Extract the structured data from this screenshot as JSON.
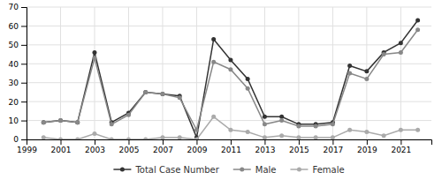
{
  "chart_data": {
    "type": "line",
    "x": [
      2000,
      2001,
      2002,
      2003,
      2004,
      2005,
      2006,
      2007,
      2008,
      2009,
      2010,
      2011,
      2012,
      2013,
      2014,
      2015,
      2016,
      2017,
      2018,
      2019,
      2020,
      2021,
      2022
    ],
    "series": [
      {
        "name": "Total Case Number",
        "color": "#333333",
        "marker": "circle",
        "values": [
          9,
          10,
          9,
          46,
          9,
          14,
          25,
          24,
          23,
          1,
          53,
          42,
          32,
          12,
          12,
          8,
          8,
          9,
          39,
          36,
          46,
          51,
          63
        ]
      },
      {
        "name": "Male",
        "color": "#888888",
        "marker": "circle",
        "values": [
          9,
          10,
          9,
          43,
          8,
          13,
          25,
          24,
          22,
          5,
          41,
          37,
          27,
          8,
          10,
          7,
          7,
          8,
          35,
          32,
          45,
          46,
          58
        ]
      },
      {
        "name": "Female",
        "color": "#aaaaaa",
        "marker": "circle",
        "values": [
          1,
          0,
          0,
          3,
          0,
          0,
          0,
          1,
          1,
          0,
          12,
          5,
          4,
          1,
          2,
          1,
          1,
          1,
          5,
          4,
          2,
          5,
          5
        ]
      }
    ],
    "xlim": [
      1999,
      2022.8
    ],
    "xticks": [
      1999,
      2001,
      2003,
      2005,
      2007,
      2009,
      2011,
      2013,
      2015,
      2017,
      2019,
      2021
    ],
    "ylim": [
      0,
      70
    ],
    "yticks": [
      0,
      10,
      20,
      30,
      40,
      50,
      60,
      70
    ],
    "grid": true,
    "legend": "bottom"
  }
}
